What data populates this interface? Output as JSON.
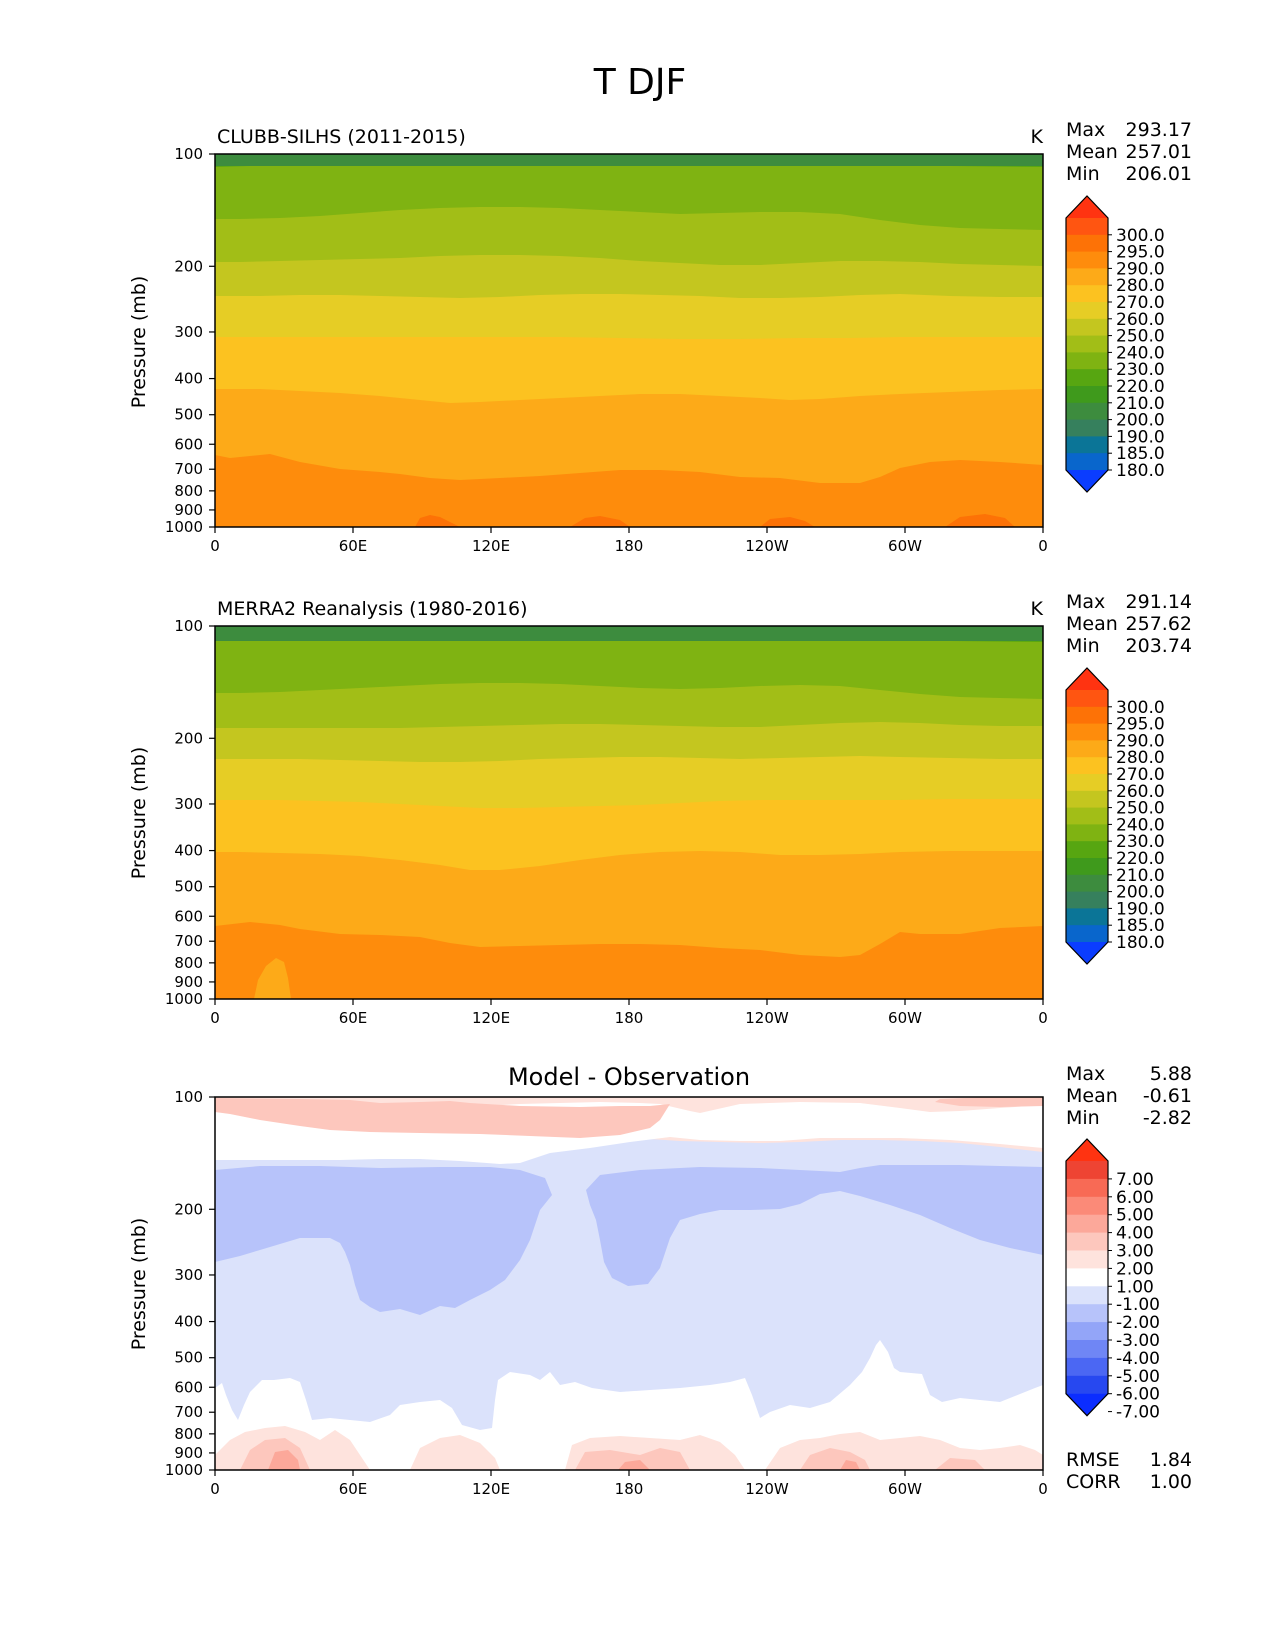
{
  "figure_title": "T DJF",
  "chart_data": [
    {
      "type": "heatmap",
      "id": "test",
      "title": "CLUBB-SILHS (2011-2015)",
      "units": "K",
      "ylabel": "Pressure (mb)",
      "xlabel": "",
      "xticks": [
        "0",
        "60E",
        "120E",
        "180",
        "120W",
        "60W",
        "0"
      ],
      "yticks": [
        "100",
        "200",
        "300",
        "400",
        "500",
        "600",
        "700",
        "800",
        "900",
        "1000"
      ],
      "x_range": [
        0,
        360
      ],
      "y_range": [
        100,
        1000
      ],
      "y_scale": "log (reversed)",
      "stats": {
        "max_label": "Max",
        "max": "293.17",
        "mean_label": "Mean",
        "mean": "257.01",
        "min_label": "Min",
        "min": "206.01"
      },
      "colorbar": {
        "extend": "both",
        "levels": [
          "300.0",
          "295.0",
          "290.0",
          "280.0",
          "270.0",
          "260.0",
          "250.0",
          "240.0",
          "230.0",
          "220.0",
          "210.0",
          "200.0",
          "190.0",
          "185.0",
          "180.0"
        ],
        "colors": [
          "#ff3311",
          "#ff5511",
          "#fd7206",
          "#fe8c0c",
          "#fdaa18",
          "#fcc220",
          "#e6cd25",
          "#c4c61f",
          "#a2be17",
          "#7fb312",
          "#57a611",
          "#3f9a1c",
          "#3d8c3e",
          "#36805d",
          "#0b7597",
          "#0966cc",
          "#0b3dff"
        ]
      },
      "contour_bands": [
        {
          "level_range": "200-210",
          "p_top": 100,
          "p_bottom": 108,
          "color": "#3d8c3e"
        },
        {
          "level_range": "210-220",
          "p_top": 108,
          "p_bottom": 200,
          "color": "#57a611"
        },
        {
          "level_range": "220-230",
          "p_top": 200,
          "p_bottom": 290,
          "color": "#7fb312"
        },
        {
          "level_range": "230-240",
          "p_top": 290,
          "p_bottom": 370,
          "color": "#a2be17"
        },
        {
          "level_range": "240-250",
          "p_top": 370,
          "p_bottom": 440,
          "color": "#c4c61f"
        },
        {
          "level_range": "250-260",
          "p_top": 440,
          "p_bottom": 545,
          "color": "#e6cd25"
        },
        {
          "level_range": "260-270",
          "p_top": 545,
          "p_bottom": 680,
          "color": "#fcc220"
        },
        {
          "level_range": "270-280",
          "p_top": 680,
          "p_bottom": 860,
          "color": "#fdaa18"
        },
        {
          "level_range": "280-290",
          "p_top": 860,
          "p_bottom": 1000,
          "color": "#fe8c0c"
        },
        {
          "level_range": "290-295",
          "p_top": 975,
          "p_bottom": 1000,
          "color": "#fd7206"
        }
      ]
    },
    {
      "type": "heatmap",
      "id": "reference",
      "title": "MERRA2 Reanalysis (1980-2016)",
      "units": "K",
      "ylabel": "Pressure (mb)",
      "xlabel": "",
      "xticks": [
        "0",
        "60E",
        "120E",
        "180",
        "120W",
        "60W",
        "0"
      ],
      "yticks": [
        "100",
        "200",
        "300",
        "400",
        "500",
        "600",
        "700",
        "800",
        "900",
        "1000"
      ],
      "x_range": [
        0,
        360
      ],
      "y_range": [
        100,
        1000
      ],
      "y_scale": "log (reversed)",
      "stats": {
        "max_label": "Max",
        "max": "291.14",
        "mean_label": "Mean",
        "mean": "257.62",
        "min_label": "Min",
        "min": "203.74"
      },
      "colorbar": {
        "extend": "both",
        "levels": [
          "300.0",
          "295.0",
          "290.0",
          "280.0",
          "270.0",
          "260.0",
          "250.0",
          "240.0",
          "230.0",
          "220.0",
          "210.0",
          "200.0",
          "190.0",
          "185.0",
          "180.0"
        ],
        "colors": [
          "#ff3311",
          "#ff5511",
          "#fd7206",
          "#fe8c0c",
          "#fdaa18",
          "#fcc220",
          "#e6cd25",
          "#c4c61f",
          "#a2be17",
          "#7fb312",
          "#57a611",
          "#3f9a1c",
          "#3d8c3e",
          "#36805d",
          "#0b7597",
          "#0966cc",
          "#0b3dff"
        ]
      },
      "contour_bands": [
        {
          "level_range": "200-210",
          "p_top": 100,
          "p_bottom": 110,
          "color": "#3d8c3e"
        },
        {
          "level_range": "210-220",
          "p_top": 110,
          "p_bottom": 205,
          "color": "#57a611"
        },
        {
          "level_range": "220-230",
          "p_top": 205,
          "p_bottom": 285,
          "color": "#7fb312"
        },
        {
          "level_range": "230-240",
          "p_top": 285,
          "p_bottom": 365,
          "color": "#a2be17"
        },
        {
          "level_range": "240-250",
          "p_top": 365,
          "p_bottom": 440,
          "color": "#c4c61f"
        },
        {
          "level_range": "250-260",
          "p_top": 440,
          "p_bottom": 545,
          "color": "#e6cd25"
        },
        {
          "level_range": "260-270",
          "p_top": 545,
          "p_bottom": 665,
          "color": "#fcc220"
        },
        {
          "level_range": "270-280",
          "p_top": 665,
          "p_bottom": 860,
          "color": "#fdaa18"
        },
        {
          "level_range": "280-290",
          "p_top": 860,
          "p_bottom": 1000,
          "color": "#fe8c0c"
        }
      ]
    },
    {
      "type": "heatmap",
      "id": "difference",
      "title": "Model - Observation",
      "units": "",
      "ylabel": "Pressure (mb)",
      "xlabel": "",
      "xticks": [
        "0",
        "60E",
        "120E",
        "180",
        "120W",
        "60W",
        "0"
      ],
      "yticks": [
        "100",
        "200",
        "300",
        "400",
        "500",
        "600",
        "700",
        "800",
        "900",
        "1000"
      ],
      "x_range": [
        0,
        360
      ],
      "y_range": [
        100,
        1000
      ],
      "y_scale": "log (reversed)",
      "stats": {
        "max_label": "Max",
        "max": "5.88",
        "mean_label": "Mean",
        "mean": "-0.61",
        "min_label": "Min",
        "min": "-2.82"
      },
      "metrics": {
        "rmse_label": "RMSE",
        "rmse": "1.84",
        "corr_label": "CORR",
        "corr": "1.00"
      },
      "colorbar": {
        "extend": "both",
        "levels": [
          "7.00",
          "6.00",
          "5.00",
          "4.00",
          "3.00",
          "2.00",
          "1.00",
          "-1.00",
          "-2.00",
          "-3.00",
          "-4.00",
          "-5.00",
          "-6.00",
          "-7.00"
        ],
        "colors": [
          "#ff3311",
          "#ee4433",
          "#f86a55",
          "#fb8a78",
          "#fca89a",
          "#fdc7bd",
          "#fee3dd",
          "#ffffff",
          "#dbe2fb",
          "#b7c3fa",
          "#93a5f8",
          "#6f86f5",
          "#4b67f3",
          "#2748f0",
          "#0b2dff"
        ]
      },
      "contour_bands": [
        {
          "level_range": "-2 to -1",
          "p_top": 240,
          "p_bottom": 1000,
          "color": "#dbe2fb"
        },
        {
          "level_range": "-3 to -2",
          "p_top": 260,
          "p_bottom": 640,
          "color": "#b7c3fa"
        },
        {
          "level_range": "-1 to 1",
          "p_top": 180,
          "p_bottom": 1000,
          "color": "#ffffff"
        },
        {
          "level_range": "1 to 2",
          "p_top": 100,
          "p_bottom": 230,
          "color": "#fee3dd"
        },
        {
          "level_range": "2 to 3",
          "p_top": 100,
          "p_bottom": 190,
          "color": "#fdc7bd"
        },
        {
          "level_range": "3 to 4",
          "p_top": 880,
          "p_bottom": 1000,
          "color": "#fca89a"
        }
      ]
    }
  ]
}
